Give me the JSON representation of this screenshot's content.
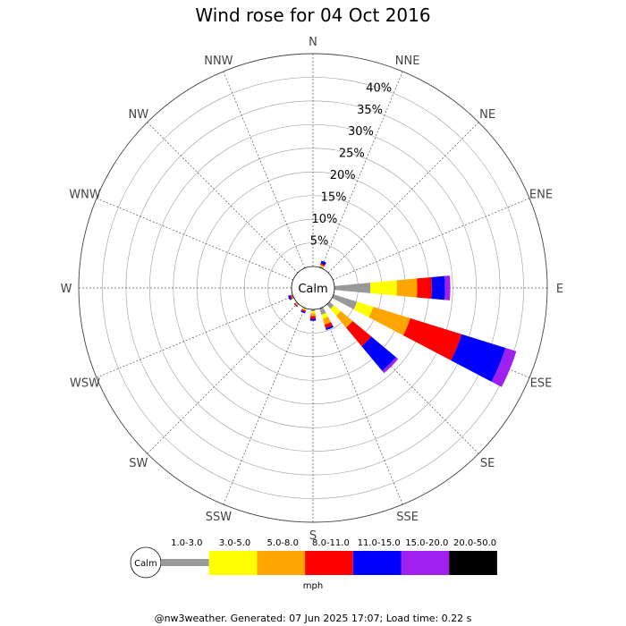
{
  "chart_data": {
    "type": "wind-rose",
    "title": "Wind rose for 04 Oct 2016",
    "directions": [
      "N",
      "NNE",
      "NE",
      "ENE",
      "E",
      "ESE",
      "SE",
      "SSE",
      "S",
      "SSW",
      "SW",
      "WSW",
      "W",
      "WNW",
      "NW",
      "NNW"
    ],
    "radial_ticks": [
      "5%",
      "10%",
      "15%",
      "20%",
      "25%",
      "30%",
      "35%",
      "40%"
    ],
    "radial_max": 45,
    "calm_label": "Calm",
    "unit": "mph",
    "bins": [
      {
        "label": "1.0-3.0",
        "color": "#999999"
      },
      {
        "label": "3.0-5.0",
        "color": "#ffff00"
      },
      {
        "label": "5.0-8.0",
        "color": "#ffa500"
      },
      {
        "label": "8.0-11.0",
        "color": "#ff0000"
      },
      {
        "label": "11.0-15.0",
        "color": "#0000ff"
      },
      {
        "label": "15.0-20.0",
        "color": "#a020f0"
      },
      {
        "label": "20.0-50.0",
        "color": "#000000"
      }
    ],
    "series": [
      {
        "direction": "NNE",
        "values": [
          0.3,
          0.1,
          0.2,
          0.3,
          0.6,
          0,
          0
        ]
      },
      {
        "direction": "E",
        "values": [
          7.6,
          5.6,
          4.3,
          3.1,
          2.8,
          1.1,
          0
        ]
      },
      {
        "direction": "ESE",
        "values": [
          5.2,
          3.6,
          8.2,
          11.4,
          9.7,
          2.4,
          0
        ]
      },
      {
        "direction": "SE",
        "values": [
          1.2,
          1.9,
          3.3,
          5.1,
          6.8,
          0.6,
          0
        ]
      },
      {
        "direction": "SSE",
        "values": [
          1.4,
          0.9,
          1.3,
          0.8,
          0.4,
          0,
          0
        ]
      },
      {
        "direction": "S",
        "values": [
          0.4,
          0.4,
          0.6,
          0.6,
          0.4,
          0,
          0
        ]
      },
      {
        "direction": "SSW",
        "values": [
          0.2,
          0.1,
          0.2,
          0.3,
          0.3,
          0,
          0
        ]
      },
      {
        "direction": "SW",
        "values": [
          0.2,
          0.1,
          0.1,
          0.2,
          0.1,
          0,
          0
        ]
      },
      {
        "direction": "WSW",
        "values": [
          0.3,
          0,
          0,
          0.3,
          0.4,
          0,
          0
        ]
      }
    ]
  },
  "footer": "@nw3weather. Generated: 07 Jun 2025 17:07; Load time: 0.22 s"
}
